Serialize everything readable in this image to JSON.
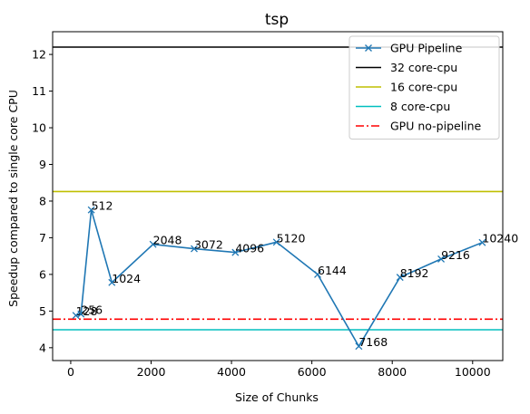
{
  "chart_data": {
    "type": "line",
    "title": "tsp",
    "xlabel": "Size of Chunks",
    "ylabel": "Speedup compared to single core CPU",
    "xlim": [
      -450,
      10750
    ],
    "ylim": [
      3.65,
      12.62
    ],
    "xticks": [
      0,
      2000,
      4000,
      6000,
      8000,
      10000
    ],
    "yticks": [
      4,
      5,
      6,
      7,
      8,
      9,
      10,
      11,
      12
    ],
    "grid": false,
    "legend_position": "top-right",
    "series": [
      {
        "name": "GPU Pipeline",
        "style": "line-x-marker",
        "color": "#1f77b4",
        "x": [
          128,
          256,
          512,
          1024,
          2048,
          3072,
          4096,
          5120,
          6144,
          7168,
          8192,
          9216,
          10240
        ],
        "y": [
          4.88,
          4.92,
          7.76,
          5.78,
          6.82,
          6.7,
          6.6,
          6.88,
          6.0,
          4.04,
          5.92,
          6.42,
          6.87
        ],
        "point_labels": [
          "128",
          "256",
          "512",
          "1024",
          "2048",
          "3072",
          "4096",
          "5120",
          "6144",
          "7168",
          "8192",
          "9216",
          "10240"
        ]
      },
      {
        "name": "32 core-cpu",
        "style": "hline-solid",
        "color": "#000000",
        "y": 12.2
      },
      {
        "name": "16 core-cpu",
        "style": "hline-solid",
        "color": "#bfbf00",
        "y": 8.26
      },
      {
        "name": "8 core-cpu",
        "style": "hline-solid",
        "color": "#00bfbf",
        "y": 4.49
      },
      {
        "name": "GPU no-pipeline",
        "style": "hline-dashdot",
        "color": "#ff0000",
        "y": 4.78
      }
    ]
  }
}
